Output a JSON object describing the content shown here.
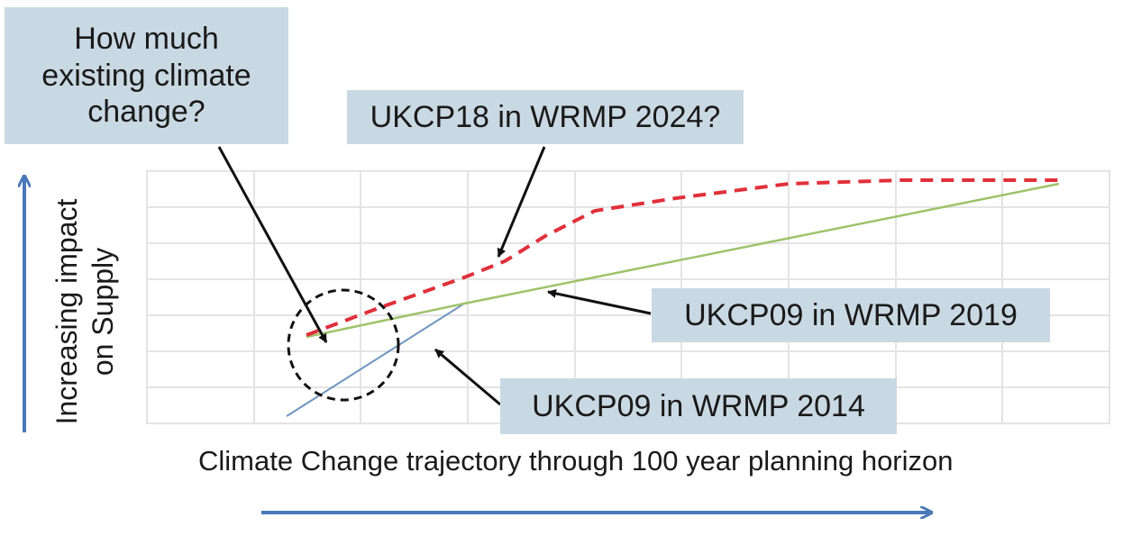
{
  "question": "How much\nexisting climate\nchange?",
  "labels": {
    "ukcp18": "UKCP18 in WRMP 2024?",
    "ukcp09_2019": "UKCP09 in WRMP 2019",
    "ukcp09_2014": "UKCP09 in WRMP 2014"
  },
  "axes": {
    "y_label": "Increasing impact\non Supply",
    "x_label": "Climate Change trajectory through 100 year planning horizon"
  },
  "colors": {
    "ukcp18": "#e0303a",
    "ukcp09_2019": "#9fc26a",
    "ukcp09_2014": "#6f95c0",
    "arrow_axis": "#4a78b8",
    "callout": "#c9d9e3",
    "grid": "#e4e4e4"
  }
}
